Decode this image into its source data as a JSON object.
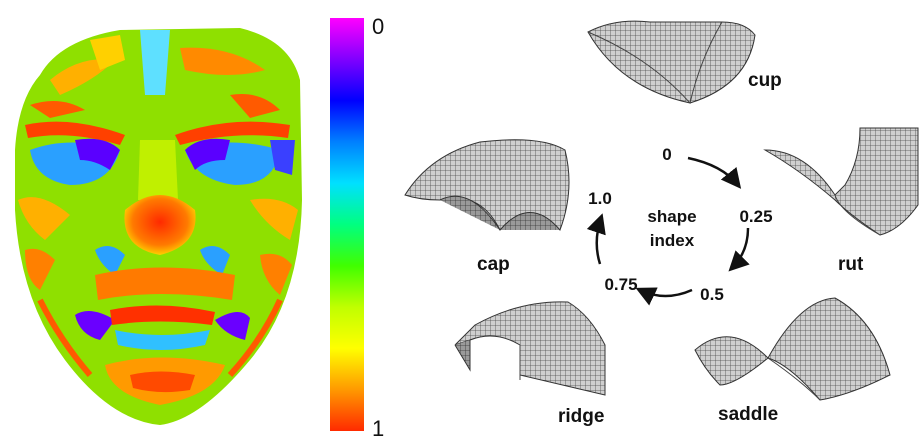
{
  "colorbar": {
    "top_label": "0",
    "bottom_label": "1",
    "colors": [
      "#ff00ff",
      "#8000ff",
      "#0000ff",
      "#0080ff",
      "#00e0ff",
      "#00ff80",
      "#40ff00",
      "#c0ff00",
      "#ffff00",
      "#ff9900",
      "#ff2a00"
    ]
  },
  "cycle": {
    "center_line1": "shape",
    "center_line2": "index",
    "values": [
      "0",
      "0.25",
      "0.5",
      "0.75",
      "1.0"
    ]
  },
  "surfaces": {
    "cup": "cup",
    "rut": "rut",
    "saddle": "saddle",
    "ridge": "ridge",
    "cap": "cap"
  }
}
